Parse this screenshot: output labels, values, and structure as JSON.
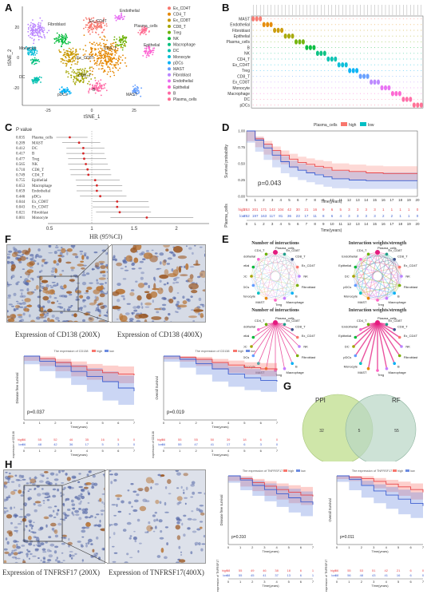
{
  "figure": {
    "panel_labels": [
      "A",
      "B",
      "C",
      "D",
      "E",
      "F",
      "G",
      "H"
    ]
  },
  "panelA": {
    "xlabel": "tSNE_1",
    "ylabel": "tSNE_2",
    "yticks": [
      "20",
      "0",
      "-20"
    ],
    "xticks": [
      "-25",
      "0",
      "25"
    ],
    "legend": [
      "Ex_CD4T",
      "CD4_T",
      "Ex_CD8T",
      "CD8_T",
      "Treg",
      "NK",
      "Macrophage",
      "DC",
      "Monocyte",
      "pDCs",
      "MAST",
      "Fibroblast",
      "Endothelial",
      "Epithelial",
      "B",
      "Plasma_cells"
    ],
    "colors": [
      "#F8766D",
      "#E58700",
      "#C99800",
      "#A3A500",
      "#6BB100",
      "#00BA38",
      "#00BF7D",
      "#00C0AF",
      "#00BCD8",
      "#00B0F6",
      "#619CFF",
      "#B983FF",
      "#E76BF3",
      "#FD61D1",
      "#FF67A4",
      "#FF6C91"
    ],
    "cluster_labels": [
      "Endothelial",
      "Ex_CD4T",
      "Plasma_cells",
      "CD4_T",
      "Ex_CD8T",
      "CD8_T",
      "Fibroblast",
      "Monocyte",
      "DC",
      "pDCs",
      "B",
      "MAST",
      "Epithelial"
    ]
  },
  "panelB": {
    "rows": [
      "MAST",
      "Endothelial",
      "Fibroblast",
      "Epithelial",
      "Plasma_cells",
      "B",
      "NK",
      "CD4_T",
      "Ex_CD4T",
      "Treg",
      "CD8_T",
      "Ex_CD8T",
      "Monocyte",
      "Macrophage",
      "DC",
      "pDCs"
    ]
  },
  "panelC": {
    "header": "P value",
    "xlabel": "HR (95%CI)",
    "xticks": [
      "0.5",
      "1",
      "1.5",
      "2"
    ],
    "rows": [
      {
        "p": "0.035",
        "name": "Plasma_cells",
        "hr": 0.74,
        "lo": 0.58,
        "hi": 0.95
      },
      {
        "p": "0.209",
        "name": "MAST",
        "hr": 0.85,
        "lo": 0.65,
        "hi": 1.1
      },
      {
        "p": "0.412",
        "name": "DC",
        "hr": 0.9,
        "lo": 0.7,
        "hi": 1.15
      },
      {
        "p": "0.417",
        "name": "B",
        "hr": 0.9,
        "lo": 0.7,
        "hi": 1.15
      },
      {
        "p": "0.477",
        "name": "Treg",
        "hr": 0.91,
        "lo": 0.72,
        "hi": 1.17
      },
      {
        "p": "0.565",
        "name": "NK",
        "hr": 0.93,
        "lo": 0.72,
        "hi": 1.19
      },
      {
        "p": "0.710",
        "name": "CD8_T",
        "hr": 0.95,
        "lo": 0.74,
        "hi": 1.22
      },
      {
        "p": "0.749",
        "name": "CD4_T",
        "hr": 0.96,
        "lo": 0.75,
        "hi": 1.23
      },
      {
        "p": "0.755",
        "name": "Epithelial",
        "hr": 1.04,
        "lo": 0.81,
        "hi": 1.33
      },
      {
        "p": "0.653",
        "name": "Macrophage",
        "hr": 1.06,
        "lo": 0.82,
        "hi": 1.36
      },
      {
        "p": "0.659",
        "name": "Endothelial",
        "hr": 1.06,
        "lo": 0.82,
        "hi": 1.36
      },
      {
        "p": "0.446",
        "name": "pDCs",
        "hr": 1.1,
        "lo": 0.86,
        "hi": 1.41
      },
      {
        "p": "0.044",
        "name": "Ex_CD8T",
        "hr": 1.3,
        "lo": 1.01,
        "hi": 1.67
      },
      {
        "p": "0.043",
        "name": "Ex_CD4T",
        "hr": 1.3,
        "lo": 1.01,
        "hi": 1.68
      },
      {
        "p": "0.021",
        "name": "Fibroblast",
        "hr": 1.33,
        "lo": 1.05,
        "hi": 1.7
      },
      {
        "p": "0.001",
        "name": "Monocyte",
        "hr": 1.65,
        "lo": 1.22,
        "hi": 2.2
      }
    ]
  },
  "panelD": {
    "legend_title": "Plasma_cells",
    "legend_high": "high",
    "legend_low": "low",
    "ylabel": "Survival probability",
    "xlabel": "Time(years)",
    "pvalue": "p=0.043",
    "risk_ylabel": "Plasma_cells",
    "risk_high_label": "high",
    "risk_low_label": "low",
    "risk_xlabel": "Time(years)",
    "yticks": [
      "1.00",
      "0.75",
      "0.50",
      "0.25",
      "0.00"
    ],
    "xticks": [
      "0",
      "1",
      "2",
      "3",
      "4",
      "5",
      "6",
      "7",
      "8",
      "9",
      "10",
      "11",
      "12",
      "13",
      "14",
      "15",
      "16",
      "17",
      "18",
      "19",
      "20"
    ],
    "risk_high": [
      "253",
      "201",
      "171",
      "142",
      "104",
      "42",
      "30",
      "21",
      "16",
      "9",
      "6",
      "5",
      "3",
      "3",
      "3",
      "3",
      "1",
      "1",
      "1",
      "1",
      "0"
    ],
    "risk_low": [
      "252",
      "197",
      "163",
      "117",
      "81",
      "36",
      "23",
      "17",
      "11",
      "8",
      "6",
      "4",
      "3",
      "3",
      "3",
      "3",
      "2",
      "2",
      "1",
      "1",
      "0"
    ],
    "colors": {
      "high": "#F8766D",
      "low": "#00BFC4"
    }
  },
  "panelE": {
    "titles": [
      "Number of interactions",
      "Interaction weights/strength",
      "Number of interactions",
      "Interaction weights/strength"
    ],
    "nodes": [
      "Plasma_cells",
      "Ex_CD8T",
      "CD8_T",
      "Ex_CD4T",
      "NK",
      "Fibroblast",
      "B",
      "Macrophage",
      "Treg",
      "MAST",
      "Monocyte",
      "pDCs",
      "DC",
      "Epithelial",
      "Endothelial",
      "CD4_T"
    ]
  },
  "panelF": {
    "caption_left": "Expression of CD138 (200X)",
    "caption_right": "Expression of CD138 (400X)",
    "km_left": {
      "title": "The expression of CD138",
      "legend_high": "high",
      "legend_low": "low",
      "ylabel": "Disease free survival",
      "xlabel": "Time(years)",
      "pvalue": "p=0.037",
      "risk_ylabel": "expression of CD138",
      "risk_high_label": "high",
      "risk_low_label": "low",
      "xticks": [
        "0",
        "1",
        "2",
        "3",
        "4",
        "5",
        "6",
        "7"
      ],
      "risk_high": [
        "56",
        "55",
        "52",
        "46",
        "35",
        "16",
        "5",
        "0"
      ],
      "risk_low": [
        "56",
        "48",
        "42",
        "36",
        "17",
        "5",
        "3",
        "0"
      ]
    },
    "km_right": {
      "title": "The expression of CD138",
      "legend_high": "high",
      "legend_low": "low",
      "ylabel": "Overall Survival",
      "xlabel": "Time(years)",
      "pvalue": "p=0.019",
      "risk_ylabel": "expression of CD138",
      "risk_high_label": "high",
      "risk_low_label": "low",
      "xticks": [
        "0",
        "1",
        "2",
        "3",
        "4",
        "5",
        "6",
        "7"
      ],
      "risk_high": [
        "56",
        "55",
        "55",
        "50",
        "39",
        "18",
        "6",
        "0"
      ],
      "risk_low": [
        "56",
        "55",
        "47",
        "41",
        "17",
        "6",
        "3",
        "0"
      ]
    }
  },
  "panelG": {
    "left_label": "PPI",
    "right_label": "RF",
    "left_only": "32",
    "overlap": "5",
    "right_only": "55",
    "colors": {
      "left": "#C7E29A",
      "right": "#B8D6C4"
    }
  },
  "panelH": {
    "caption_left": "Expression of TNFRSF17 (200X)",
    "caption_right": "Expression of TNFRSF17(400X)",
    "km_left": {
      "title": "The expression of TNFRSF17",
      "legend_high": "high",
      "legend_low": "low",
      "ylabel": "Disease free survival",
      "xlabel": "Time(years)",
      "pvalue": "p=0.310",
      "risk_ylabel": "expression of TNFRSF17",
      "risk_high_label": "high",
      "risk_low_label": "low",
      "xticks": [
        "0",
        "1",
        "2",
        "3",
        "4",
        "5",
        "6",
        "7"
      ],
      "risk_high": [
        "58",
        "55",
        "49",
        "46",
        "38",
        "18",
        "6",
        "1"
      ],
      "risk_low": [
        "58",
        "55",
        "45",
        "41",
        "37",
        "13",
        "6",
        "1"
      ]
    },
    "km_right": {
      "title": "The expression of TNFRSF17",
      "legend_high": "high",
      "legend_low": "low",
      "ylabel": "Overall Survival",
      "xlabel": "Time(years)",
      "pvalue": "p=0.011",
      "risk_ylabel": "expression of TNFRSF17",
      "risk_high_label": "high",
      "risk_low_label": "low",
      "xticks": [
        "0",
        "1",
        "2",
        "3",
        "4",
        "5",
        "6",
        "7"
      ],
      "risk_high": [
        "56",
        "55",
        "53",
        "51",
        "42",
        "21",
        "6",
        "0"
      ],
      "risk_low": [
        "58",
        "56",
        "48",
        "43",
        "41",
        "16",
        "6",
        "0"
      ]
    }
  },
  "chart_data": [
    {
      "type": "scatter",
      "panel": "A",
      "xlabel": "tSNE_1",
      "ylabel": "tSNE_2",
      "legend": "right",
      "series": [
        "Ex_CD4T",
        "CD4_T",
        "Ex_CD8T",
        "CD8_T",
        "Treg",
        "NK",
        "Macrophage",
        "DC",
        "Monocyte",
        "pDCs",
        "MAST",
        "Fibroblast",
        "Endothelial",
        "Epithelial",
        "B",
        "Plasma_cells"
      ]
    },
    {
      "type": "line",
      "panel": "D",
      "xlabel": "Time(years)",
      "ylabel": "Survival probability",
      "xlim": [
        0,
        20
      ],
      "ylim": [
        0,
        1
      ],
      "series": [
        {
          "name": "high",
          "x": [
            0,
            1,
            2,
            3,
            4,
            5,
            6,
            7,
            8,
            9,
            10,
            12,
            14,
            16,
            18,
            20
          ],
          "values": [
            1.0,
            0.88,
            0.8,
            0.7,
            0.63,
            0.57,
            0.52,
            0.49,
            0.46,
            0.44,
            0.4,
            0.38,
            0.36,
            0.35,
            0.35,
            0.35
          ]
        },
        {
          "name": "low",
          "x": [
            0,
            1,
            2,
            3,
            4,
            5,
            6,
            7,
            8,
            9,
            10,
            12,
            14,
            16,
            18,
            20
          ],
          "values": [
            1.0,
            0.86,
            0.74,
            0.63,
            0.53,
            0.45,
            0.4,
            0.36,
            0.33,
            0.3,
            0.27,
            0.25,
            0.24,
            0.24,
            0.24,
            0.24
          ]
        }
      ]
    },
    {
      "type": "line",
      "panel": "F-left",
      "xlabel": "Time(years)",
      "ylabel": "Disease free survival",
      "xlim": [
        0,
        7
      ],
      "series": [
        {
          "name": "high",
          "x": [
            0,
            1,
            2,
            3,
            4,
            5,
            6,
            7
          ],
          "values": [
            1.0,
            0.96,
            0.9,
            0.84,
            0.78,
            0.74,
            0.72,
            0.7
          ]
        },
        {
          "name": "low",
          "x": [
            0,
            1,
            2,
            3,
            4,
            5,
            6,
            7
          ],
          "values": [
            1.0,
            0.92,
            0.84,
            0.76,
            0.68,
            0.6,
            0.5,
            0.45
          ]
        }
      ]
    },
    {
      "type": "line",
      "panel": "F-right",
      "xlabel": "Time(years)",
      "ylabel": "Overall Survival",
      "xlim": [
        0,
        7
      ],
      "series": [
        {
          "name": "high",
          "x": [
            0,
            1,
            2,
            3,
            4,
            5,
            6,
            7
          ],
          "values": [
            1.0,
            0.98,
            0.95,
            0.9,
            0.86,
            0.82,
            0.8,
            0.78
          ]
        },
        {
          "name": "low",
          "x": [
            0,
            1,
            2,
            3,
            4,
            5,
            6,
            7
          ],
          "values": [
            1.0,
            0.95,
            0.88,
            0.8,
            0.72,
            0.66,
            0.62,
            0.6
          ]
        }
      ]
    },
    {
      "type": "line",
      "panel": "H-left",
      "xlabel": "Time(years)",
      "ylabel": "Disease free survival",
      "xlim": [
        0,
        7
      ],
      "series": [
        {
          "name": "high",
          "x": [
            0,
            1,
            2,
            3,
            4,
            5,
            6,
            7
          ],
          "values": [
            1.0,
            0.96,
            0.9,
            0.85,
            0.8,
            0.76,
            0.72,
            0.7
          ]
        },
        {
          "name": "low",
          "x": [
            0,
            1,
            2,
            3,
            4,
            5,
            6,
            7
          ],
          "values": [
            1.0,
            0.94,
            0.86,
            0.8,
            0.74,
            0.68,
            0.62,
            0.58
          ]
        }
      ]
    },
    {
      "type": "line",
      "panel": "H-right",
      "xlabel": "Time(years)",
      "ylabel": "Overall Survival",
      "xlim": [
        0,
        7
      ],
      "series": [
        {
          "name": "high",
          "x": [
            0,
            1,
            2,
            3,
            4,
            5,
            6,
            7
          ],
          "values": [
            1.0,
            0.98,
            0.96,
            0.92,
            0.88,
            0.84,
            0.8,
            0.76
          ]
        },
        {
          "name": "low",
          "x": [
            0,
            1,
            2,
            3,
            4,
            5,
            6,
            7
          ],
          "values": [
            1.0,
            0.95,
            0.86,
            0.78,
            0.72,
            0.66,
            0.6,
            0.56
          ]
        }
      ]
    }
  ]
}
